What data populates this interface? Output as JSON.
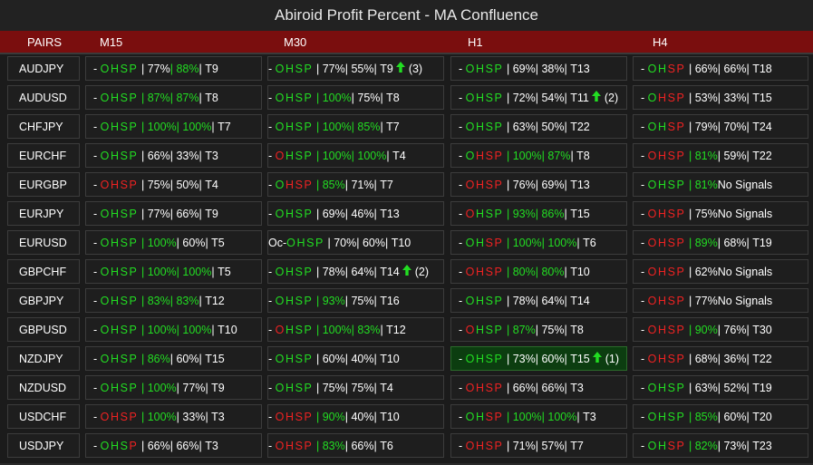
{
  "title": "Abiroid Profit Percent - MA Confluence",
  "header": {
    "pairs": "PAIRS",
    "timeframes": [
      "M15",
      "M30",
      "H1",
      "H4"
    ]
  },
  "colors": {
    "green": "#22dd22",
    "red": "#ee2222",
    "header_bg": "#7a0e0e",
    "highlight": "#0c3d10"
  },
  "rows": [
    {
      "pair": "AUDJPY",
      "cells": [
        {
          "pre": "- ",
          "s": "gggg",
          "p1": "77%",
          "p1c": "w",
          "p2": "88%",
          "p2c": "g",
          "t": "T9",
          "arrow": "",
          "sig": ""
        },
        {
          "pre": "- ",
          "s": "gggg",
          "p1": "77%",
          "p1c": "w",
          "p2": "55%",
          "p2c": "w",
          "t": "T9",
          "arrow": "up",
          "sig": "(3)"
        },
        {
          "pre": "- ",
          "s": "gggg",
          "p1": "69%",
          "p1c": "w",
          "p2": "38%",
          "p2c": "w",
          "t": "T13",
          "arrow": "",
          "sig": ""
        },
        {
          "pre": "- ",
          "s": "ggrr",
          "p1": "66%",
          "p1c": "w",
          "p2": "66%",
          "p2c": "w",
          "t": "T18",
          "arrow": "",
          "sig": ""
        }
      ]
    },
    {
      "pair": "AUDUSD",
      "cells": [
        {
          "pre": "- ",
          "s": "gggg",
          "p1": "87%",
          "p1c": "g",
          "p2": "87%",
          "p2c": "g",
          "t": "T8",
          "arrow": "",
          "sig": ""
        },
        {
          "pre": "- ",
          "s": "gggg",
          "p1": "100%",
          "p1c": "g",
          "p2": "75%",
          "p2c": "w",
          "t": "T8",
          "arrow": "",
          "sig": ""
        },
        {
          "pre": "- ",
          "s": "gggg",
          "p1": "72%",
          "p1c": "w",
          "p2": "54%",
          "p2c": "w",
          "t": "T11",
          "arrow": "up",
          "sig": "(2)"
        },
        {
          "pre": "- ",
          "s": "grrr",
          "p1": "53%",
          "p1c": "w",
          "p2": "33%",
          "p2c": "w",
          "t": "T15",
          "arrow": "",
          "sig": ""
        }
      ]
    },
    {
      "pair": "CHFJPY",
      "cells": [
        {
          "pre": "- ",
          "s": "gggg",
          "p1": "100%",
          "p1c": "g",
          "p2": "100%",
          "p2c": "g",
          "t": "T7",
          "arrow": "",
          "sig": ""
        },
        {
          "pre": "- ",
          "s": "gggg",
          "p1": "100%",
          "p1c": "g",
          "p2": "85%",
          "p2c": "g",
          "t": "T7",
          "arrow": "",
          "sig": ""
        },
        {
          "pre": "- ",
          "s": "gggg",
          "p1": "63%",
          "p1c": "w",
          "p2": "50%",
          "p2c": "w",
          "t": "T22",
          "arrow": "",
          "sig": ""
        },
        {
          "pre": "- ",
          "s": "ggrr",
          "p1": "79%",
          "p1c": "w",
          "p2": "70%",
          "p2c": "w",
          "t": "T24",
          "arrow": "",
          "sig": ""
        }
      ]
    },
    {
      "pair": "EURCHF",
      "cells": [
        {
          "pre": "- ",
          "s": "gggg",
          "p1": "66%",
          "p1c": "w",
          "p2": "33%",
          "p2c": "w",
          "t": "T3",
          "arrow": "",
          "sig": ""
        },
        {
          "pre": "- ",
          "s": "rggg",
          "p1": "100%",
          "p1c": "g",
          "p2": "100%",
          "p2c": "g",
          "t": "T4",
          "arrow": "",
          "sig": ""
        },
        {
          "pre": "- ",
          "s": "grrr",
          "p1": "100%",
          "p1c": "g",
          "p2": "87%",
          "p2c": "g",
          "t": "T8",
          "arrow": "",
          "sig": ""
        },
        {
          "pre": "- ",
          "s": "rrrr",
          "p1": "81%",
          "p1c": "g",
          "p2": "59%",
          "p2c": "w",
          "t": "T22",
          "arrow": "",
          "sig": ""
        }
      ]
    },
    {
      "pair": "EURGBP",
      "cells": [
        {
          "pre": "- ",
          "s": "rrrr",
          "p1": "75%",
          "p1c": "w",
          "p2": "50%",
          "p2c": "w",
          "t": "T4",
          "arrow": "",
          "sig": ""
        },
        {
          "pre": "- ",
          "s": "grrr",
          "p1": "85%",
          "p1c": "g",
          "p2": "71%",
          "p2c": "w",
          "t": "T7",
          "arrow": "",
          "sig": ""
        },
        {
          "pre": "- ",
          "s": "rrrr",
          "p1": "76%",
          "p1c": "w",
          "p2": "69%",
          "p2c": "w",
          "t": "T13",
          "arrow": "",
          "sig": ""
        },
        {
          "pre": "- ",
          "s": "gggg",
          "p1": "81%",
          "p1c": "g",
          "p2": "",
          "p2c": "w",
          "t": "No Signals",
          "arrow": "",
          "sig": ""
        }
      ]
    },
    {
      "pair": "EURJPY",
      "cells": [
        {
          "pre": "- ",
          "s": "gggg",
          "p1": "77%",
          "p1c": "w",
          "p2": "66%",
          "p2c": "w",
          "t": "T9",
          "arrow": "",
          "sig": ""
        },
        {
          "pre": "- ",
          "s": "gggg",
          "p1": "69%",
          "p1c": "w",
          "p2": "46%",
          "p2c": "w",
          "t": "T13",
          "arrow": "",
          "sig": ""
        },
        {
          "pre": "- ",
          "s": "rggg",
          "p1": "93%",
          "p1c": "g",
          "p2": "86%",
          "p2c": "g",
          "t": "T15",
          "arrow": "",
          "sig": ""
        },
        {
          "pre": "- ",
          "s": "rrrr",
          "p1": "75%",
          "p1c": "w",
          "p2": "",
          "p2c": "w",
          "t": "No Signals",
          "arrow": "",
          "sig": ""
        }
      ]
    },
    {
      "pair": "EURUSD",
      "cells": [
        {
          "pre": "- ",
          "s": "gggg",
          "p1": "100%",
          "p1c": "g",
          "p2": "60%",
          "p2c": "w",
          "t": "T5",
          "arrow": "",
          "sig": ""
        },
        {
          "pre": "Oc-",
          "s": "gggg",
          "p1": "70%",
          "p1c": "w",
          "p2": "60%",
          "p2c": "w",
          "t": "T10",
          "arrow": "",
          "sig": ""
        },
        {
          "pre": "- ",
          "s": "ggrr",
          "p1": "100%",
          "p1c": "g",
          "p2": "100%",
          "p2c": "g",
          "t": "T6",
          "arrow": "",
          "sig": ""
        },
        {
          "pre": "- ",
          "s": "rrrr",
          "p1": "89%",
          "p1c": "g",
          "p2": "68%",
          "p2c": "w",
          "t": "T19",
          "arrow": "",
          "sig": ""
        }
      ]
    },
    {
      "pair": "GBPCHF",
      "cells": [
        {
          "pre": "- ",
          "s": "gggg",
          "p1": "100%",
          "p1c": "g",
          "p2": "100%",
          "p2c": "g",
          "t": "T5",
          "arrow": "",
          "sig": ""
        },
        {
          "pre": "- ",
          "s": "gggg",
          "p1": "78%",
          "p1c": "w",
          "p2": "64%",
          "p2c": "w",
          "t": "T14",
          "arrow": "up",
          "sig": "(2)"
        },
        {
          "pre": "- ",
          "s": "rrrr",
          "p1": "80%",
          "p1c": "g",
          "p2": "80%",
          "p2c": "g",
          "t": "T10",
          "arrow": "",
          "sig": ""
        },
        {
          "pre": "- ",
          "s": "rrrr",
          "p1": "62%",
          "p1c": "w",
          "p2": "",
          "p2c": "w",
          "t": "No Signals",
          "arrow": "",
          "sig": ""
        }
      ]
    },
    {
      "pair": "GBPJPY",
      "cells": [
        {
          "pre": "- ",
          "s": "gggg",
          "p1": "83%",
          "p1c": "g",
          "p2": "83%",
          "p2c": "g",
          "t": "T12",
          "arrow": "",
          "sig": ""
        },
        {
          "pre": "- ",
          "s": "gggg",
          "p1": "93%",
          "p1c": "g",
          "p2": "75%",
          "p2c": "w",
          "t": "T16",
          "arrow": "",
          "sig": ""
        },
        {
          "pre": "- ",
          "s": "gggg",
          "p1": "78%",
          "p1c": "w",
          "p2": "64%",
          "p2c": "w",
          "t": "T14",
          "arrow": "",
          "sig": ""
        },
        {
          "pre": "- ",
          "s": "rrrr",
          "p1": "77%",
          "p1c": "w",
          "p2": "",
          "p2c": "w",
          "t": "No Signals",
          "arrow": "",
          "sig": ""
        }
      ]
    },
    {
      "pair": "GBPUSD",
      "cells": [
        {
          "pre": "- ",
          "s": "gggg",
          "p1": "100%",
          "p1c": "g",
          "p2": "100%",
          "p2c": "g",
          "t": "T10",
          "arrow": "",
          "sig": ""
        },
        {
          "pre": "- ",
          "s": "rggg",
          "p1": "100%",
          "p1c": "g",
          "p2": "83%",
          "p2c": "g",
          "t": "T12",
          "arrow": "",
          "sig": ""
        },
        {
          "pre": "- ",
          "s": "rggg",
          "p1": "87%",
          "p1c": "g",
          "p2": "75%",
          "p2c": "w",
          "t": "T8",
          "arrow": "",
          "sig": ""
        },
        {
          "pre": "- ",
          "s": "rrrr",
          "p1": "90%",
          "p1c": "g",
          "p2": "76%",
          "p2c": "w",
          "t": "T30",
          "arrow": "",
          "sig": ""
        }
      ]
    },
    {
      "pair": "NZDJPY",
      "cells": [
        {
          "pre": "- ",
          "s": "gggg",
          "p1": "86%",
          "p1c": "g",
          "p2": "60%",
          "p2c": "w",
          "t": "T15",
          "arrow": "",
          "sig": ""
        },
        {
          "pre": "- ",
          "s": "gggg",
          "p1": "60%",
          "p1c": "w",
          "p2": "40%",
          "p2c": "w",
          "t": "T10",
          "arrow": "",
          "sig": ""
        },
        {
          "pre": "- ",
          "s": "gggg",
          "p1": "73%",
          "p1c": "w",
          "p2": "60%",
          "p2c": "w",
          "t": "T15",
          "arrow": "up",
          "sig": "(1)",
          "hl": true
        },
        {
          "pre": "- ",
          "s": "rrrr",
          "p1": "68%",
          "p1c": "w",
          "p2": "36%",
          "p2c": "w",
          "t": "T22",
          "arrow": "",
          "sig": ""
        }
      ]
    },
    {
      "pair": "NZDUSD",
      "cells": [
        {
          "pre": "- ",
          "s": "gggg",
          "p1": "100%",
          "p1c": "g",
          "p2": "77%",
          "p2c": "w",
          "t": "T9",
          "arrow": "",
          "sig": ""
        },
        {
          "pre": "- ",
          "s": "gggg",
          "p1": "75%",
          "p1c": "w",
          "p2": "75%",
          "p2c": "w",
          "t": "T4",
          "arrow": "",
          "sig": ""
        },
        {
          "pre": "- ",
          "s": "rrrr",
          "p1": "66%",
          "p1c": "w",
          "p2": "66%",
          "p2c": "w",
          "t": "T3",
          "arrow": "",
          "sig": ""
        },
        {
          "pre": "- ",
          "s": "gggg",
          "p1": "63%",
          "p1c": "w",
          "p2": "52%",
          "p2c": "w",
          "t": "T19",
          "arrow": "",
          "sig": ""
        }
      ]
    },
    {
      "pair": "USDCHF",
      "cells": [
        {
          "pre": "- ",
          "s": "rrrr",
          "p1": "100%",
          "p1c": "g",
          "p2": "33%",
          "p2c": "w",
          "t": "T3",
          "arrow": "",
          "sig": ""
        },
        {
          "pre": "- ",
          "s": "rrrr",
          "p1": "90%",
          "p1c": "g",
          "p2": "40%",
          "p2c": "w",
          "t": "T10",
          "arrow": "",
          "sig": ""
        },
        {
          "pre": "- ",
          "s": "ggrr",
          "p1": "100%",
          "p1c": "g",
          "p2": "100%",
          "p2c": "g",
          "t": "T3",
          "arrow": "",
          "sig": ""
        },
        {
          "pre": "- ",
          "s": "gggg",
          "p1": "85%",
          "p1c": "g",
          "p2": "60%",
          "p2c": "w",
          "t": "T20",
          "arrow": "",
          "sig": ""
        }
      ]
    },
    {
      "pair": "USDJPY",
      "cells": [
        {
          "pre": "- ",
          "s": "gggr",
          "p1": "66%",
          "p1c": "w",
          "p2": "66%",
          "p2c": "w",
          "t": "T3",
          "arrow": "",
          "sig": ""
        },
        {
          "pre": "- ",
          "s": "rrrr",
          "p1": "83%",
          "p1c": "g",
          "p2": "66%",
          "p2c": "w",
          "t": "T6",
          "arrow": "",
          "sig": ""
        },
        {
          "pre": "- ",
          "s": "rrrr",
          "p1": "71%",
          "p1c": "w",
          "p2": "57%",
          "p2c": "w",
          "t": "T7",
          "arrow": "",
          "sig": ""
        },
        {
          "pre": "- ",
          "s": "ggrr",
          "p1": "82%",
          "p1c": "g",
          "p2": "73%",
          "p2c": "w",
          "t": "T23",
          "arrow": "",
          "sig": ""
        }
      ]
    }
  ]
}
